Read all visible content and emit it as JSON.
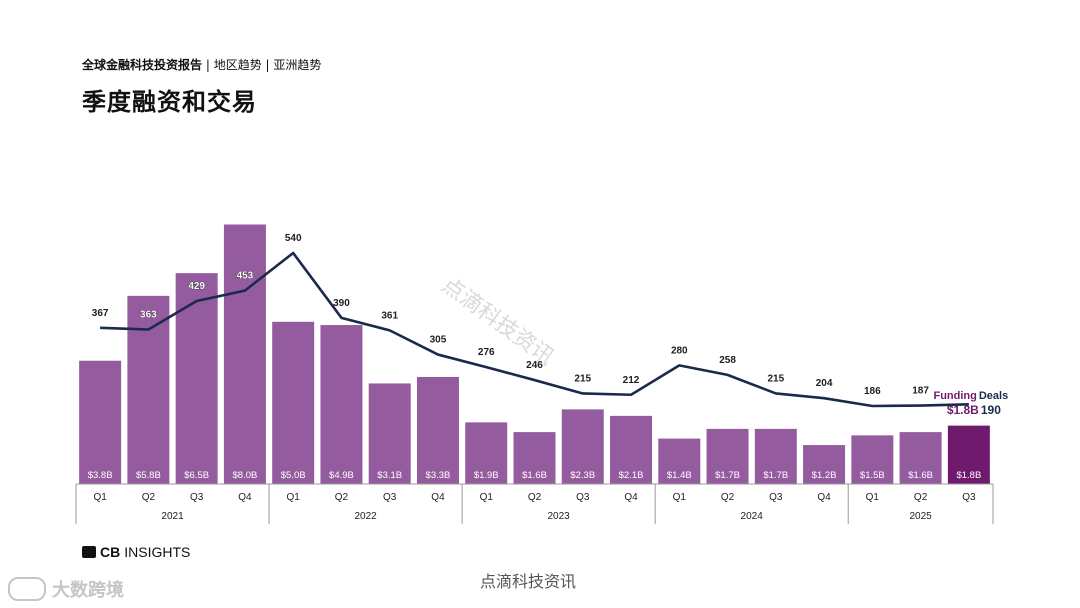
{
  "header": {
    "breadcrumb_bold": "全球金融科技投资报告",
    "breadcrumb_rest": "| 地区趋势 | 亚洲趋势",
    "title": "季度融资和交易"
  },
  "colors": {
    "bar": "#945C9E",
    "bar_highlight": "#6F1A6C",
    "line": "#1B2A4A",
    "legend_funding": "#6F1A6C"
  },
  "chart_data": {
    "type": "bar+line",
    "title": "季度融资和交易",
    "quarters": [
      "Q1",
      "Q2",
      "Q3",
      "Q4",
      "Q1",
      "Q2",
      "Q3",
      "Q4",
      "Q1",
      "Q2",
      "Q3",
      "Q4",
      "Q1",
      "Q2",
      "Q3",
      "Q4",
      "Q1",
      "Q2",
      "Q3"
    ],
    "years": [
      {
        "label": "2021",
        "count": 4
      },
      {
        "label": "2022",
        "count": 4
      },
      {
        "label": "2023",
        "count": 4
      },
      {
        "label": "2024",
        "count": 4
      },
      {
        "label": "2025",
        "count": 3
      }
    ],
    "series": [
      {
        "name": "Funding",
        "unit": "$B",
        "values": [
          3.8,
          5.8,
          6.5,
          8.0,
          5.0,
          4.9,
          3.1,
          3.3,
          1.9,
          1.6,
          2.3,
          2.1,
          1.4,
          1.7,
          1.7,
          1.2,
          1.5,
          1.6,
          1.8
        ],
        "labels": [
          "$3.8B",
          "$5.8B",
          "$6.5B",
          "$8.0B",
          "$5.0B",
          "$4.9B",
          "$3.1B",
          "$3.3B",
          "$1.9B",
          "$1.6B",
          "$2.3B",
          "$2.1B",
          "$1.4B",
          "$1.7B",
          "$1.7B",
          "$1.2B",
          "$1.5B",
          "$1.6B",
          "$1.8B"
        ],
        "ylim": [
          0,
          8.2
        ]
      },
      {
        "name": "Deals",
        "values": [
          367,
          363,
          429,
          453,
          540,
          390,
          361,
          305,
          276,
          246,
          215,
          212,
          280,
          258,
          215,
          204,
          186,
          187,
          190
        ],
        "labels": [
          "367",
          "363",
          "429",
          "453",
          "540",
          "390",
          "361",
          "305",
          "276",
          "246",
          "215",
          "212",
          "280",
          "258",
          "215",
          "204",
          "186",
          "187",
          "190"
        ],
        "ylim": [
          0,
          620
        ]
      }
    ],
    "legend": {
      "funding": "Funding",
      "deals": "Deals",
      "latest_funding": "$1.8B",
      "latest_deals": "190"
    }
  },
  "footer": {
    "logo_bold": "CB",
    "logo_rest": "INSIGHTS",
    "watermark_diagonal": "点滴科技资讯",
    "watermark_bottom": "点滴科技资讯",
    "watermark_corner": "大数跨境"
  }
}
